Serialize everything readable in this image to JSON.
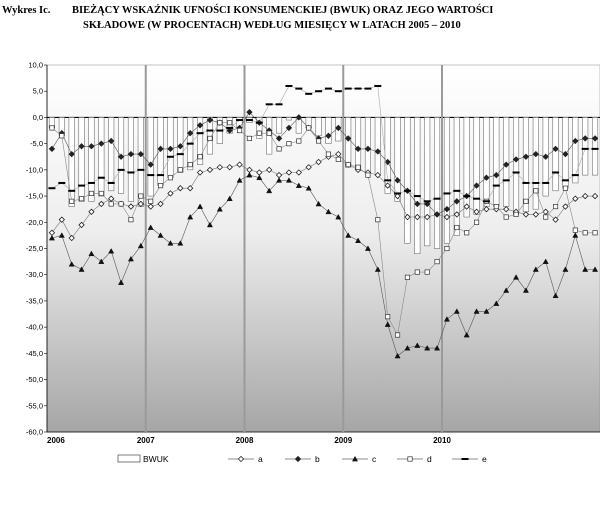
{
  "title": {
    "label": "Wykres Ic.",
    "line1": "BIEŻĄCY WSKAŹNIK UFNOŚCI KONSUMENCKIEJ (BWUK) ORAZ JEGO WARTOŚCI",
    "line2": "SKŁADOWE (W PROCENTACH) WEDŁUG MIESIĘCY W LATACH 2005 – 2010"
  },
  "chart_data": {
    "type": "bar+line",
    "ylim": [
      -60,
      10
    ],
    "yticks": [
      "10,0",
      "5,0",
      "0,0",
      "-5,0",
      "-10,0",
      "-15,0",
      "-20,0",
      "-25,0",
      "-30,0",
      "-35,0",
      "-40,0",
      "-45,0",
      "-50,0",
      "-55,0",
      "-60,0"
    ],
    "year_labels": [
      "2006",
      "2007",
      "2008",
      "2009",
      "2010"
    ],
    "months": 56,
    "series": [
      {
        "name": "BWUK",
        "kind": "bar",
        "values": [
          -2,
          -3.5,
          -17,
          -16,
          -16,
          -15,
          -14,
          -14.5,
          -16,
          -17,
          -15,
          -13,
          -11.5,
          -10.5,
          -10,
          -9,
          -7,
          -5,
          -3,
          -2,
          -1,
          -4,
          -7,
          -3,
          -0.5,
          -3,
          -2,
          -3.5,
          -5,
          -4.5,
          -9.5,
          -10,
          -10.5,
          -11,
          -14.5,
          -16,
          -24,
          -26,
          -24.5,
          -25,
          -24,
          -22.5,
          -19,
          -18.5,
          -17,
          -17,
          -17,
          -18.5,
          -18,
          -17.5,
          -15,
          -14,
          -13.5,
          -12.5,
          -11,
          -11
        ]
      },
      {
        "name": "a",
        "kind": "line",
        "marker": "diamond-open",
        "values": [
          -22,
          -19.5,
          -23,
          -20.5,
          -18,
          -16.5,
          -15.5,
          -16.5,
          -17,
          -16.5,
          -17,
          -16.5,
          -14.5,
          -13.5,
          -13.5,
          -10.5,
          -10,
          -9.5,
          -9.5,
          -9,
          -10,
          -10.5,
          -10,
          -11,
          -10.5,
          -10.5,
          -9.5,
          -8.5,
          -7.5,
          -7,
          -9,
          -10,
          -10.5,
          -11,
          -13,
          -15,
          -19,
          -19,
          -19,
          -18.5,
          -19,
          -18.5,
          -17,
          -18,
          -17.5,
          -17.5,
          -17.5,
          -18,
          -18.5,
          -18.5,
          -18,
          -19.5,
          -17,
          -15.5,
          -15,
          -15
        ]
      },
      {
        "name": "b",
        "kind": "line",
        "marker": "diamond-filled",
        "values": [
          -6,
          -3,
          -7,
          -5.5,
          -5.5,
          -5,
          -4.5,
          -7.5,
          -7,
          -7,
          -9,
          -6,
          -6,
          -5.5,
          -3,
          -1.5,
          -0.5,
          -1,
          -2.5,
          -2,
          1,
          -1,
          -2.5,
          -4,
          -2,
          0,
          -2,
          -4,
          -3.5,
          -2,
          -4,
          -6,
          -6,
          -6.5,
          -8.5,
          -12,
          -14,
          -16.5,
          -16.5,
          -18.5,
          -17.5,
          -16,
          -15,
          -13,
          -11.5,
          -11,
          -9,
          -8,
          -7.5,
          -7,
          -7.5,
          -6,
          -7,
          -4.5,
          -4,
          -4
        ]
      },
      {
        "name": "c",
        "kind": "line",
        "marker": "triangle",
        "values": [
          -23,
          -22.5,
          -28,
          -29,
          -26,
          -27.5,
          -25.5,
          -31.5,
          -27,
          -24.5,
          -21,
          -22.5,
          -24,
          -24,
          -19,
          -17,
          -20.5,
          -17.5,
          -15.5,
          -12,
          -11,
          -11.5,
          -14,
          -12,
          -12,
          -13,
          -13.5,
          -16.5,
          -18,
          -19,
          -22.5,
          -23.5,
          -25,
          -29,
          -39.5,
          -45.5,
          -44,
          -43.5,
          -44,
          -44,
          -38.5,
          -37,
          -41.5,
          -37,
          -37,
          -35.5,
          -33,
          -30.5,
          -33,
          -29,
          -27.5,
          -34,
          -29,
          -22.5,
          -29,
          -29
        ]
      },
      {
        "name": "d",
        "kind": "line",
        "marker": "square-open",
        "values": [
          -2,
          -3.5,
          -16,
          -15.5,
          -14.5,
          -14.5,
          -16.5,
          -16.5,
          -19.5,
          -15,
          -16,
          -13,
          -11.5,
          -10,
          -9,
          -7.5,
          -4,
          -1,
          -1,
          -2.5,
          -4,
          -3,
          -3,
          -6,
          -5,
          -4.5,
          -2,
          -4.5,
          -7,
          -8,
          -9,
          -9.5,
          -11,
          -19.5,
          -38,
          -41.5,
          -30.5,
          -29.5,
          -29.5,
          -27.5,
          -25,
          -21,
          -22,
          -20,
          -16,
          -17,
          -19,
          -18.5,
          -16,
          -14,
          -19,
          -17,
          -13.5,
          -21.5,
          -22,
          -22
        ]
      },
      {
        "name": "e",
        "kind": "line",
        "marker": "dash",
        "values": [
          -13.5,
          -12.5,
          -14,
          -13,
          -12.5,
          -11.5,
          -12.5,
          -10,
          -10.5,
          -10,
          -11,
          -11,
          -7.5,
          -7,
          -5,
          -3,
          -2.5,
          -2.5,
          -2,
          -0.5,
          -0.5,
          -1,
          2.5,
          2.5,
          6,
          5.5,
          4.5,
          5,
          5.5,
          5,
          5.5,
          5.5,
          5.5,
          6,
          -12,
          -14.5,
          -14,
          -15,
          -16,
          -15.5,
          -14.5,
          -14,
          -15,
          -15.5,
          -16,
          -13,
          -12,
          -10.5,
          -12.5,
          -12.5,
          -12.5,
          -10.5,
          -12,
          -11,
          -6,
          -6
        ]
      }
    ],
    "grid": false
  }
}
